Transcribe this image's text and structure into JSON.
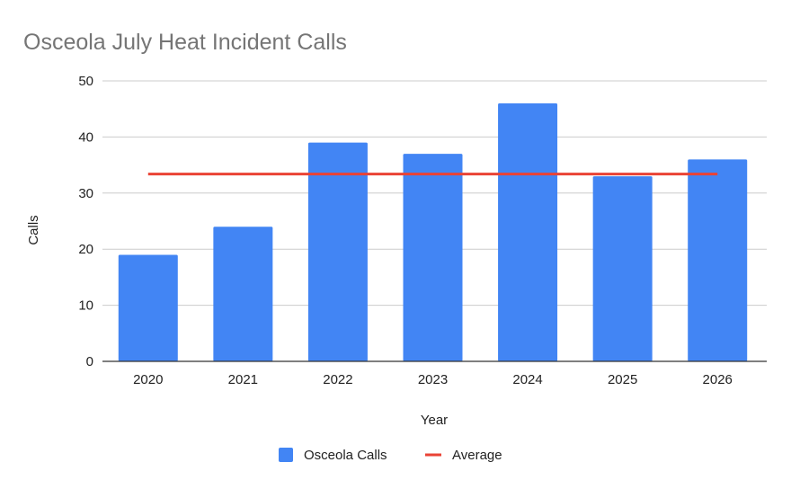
{
  "chart_data": {
    "type": "bar",
    "title": "Osceola July Heat Incident Calls",
    "xlabel": "Year",
    "ylabel": "Calls",
    "categories": [
      "2020",
      "2021",
      "2022",
      "2023",
      "2024",
      "2025",
      "2026"
    ],
    "series": [
      {
        "name": "Osceola Calls",
        "type": "bar",
        "color": "#4285f4",
        "values": [
          19,
          24,
          39,
          37,
          46,
          33,
          36
        ]
      },
      {
        "name": "Average",
        "type": "line",
        "color": "#ea4335",
        "values": [
          33.4,
          33.4,
          33.4,
          33.4,
          33.4,
          33.4,
          33.4
        ]
      }
    ],
    "ylim": [
      0,
      50
    ],
    "yticks": [
      "0",
      "10",
      "20",
      "30",
      "40",
      "50"
    ],
    "grid": true,
    "legend_position": "bottom"
  }
}
